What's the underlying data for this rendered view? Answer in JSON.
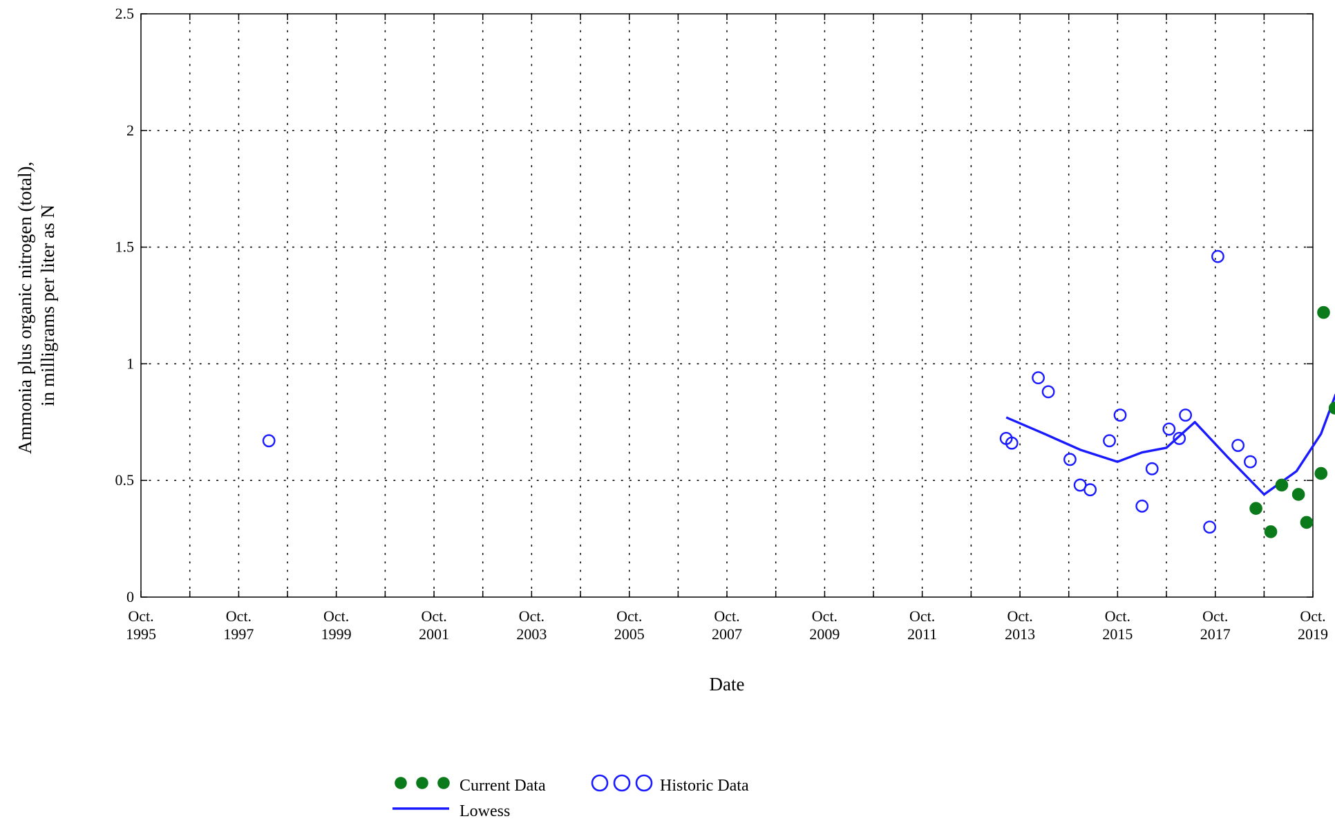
{
  "chart_data": {
    "type": "scatter",
    "xlabel": "Date",
    "ylabel_lines": [
      "Ammonia plus organic nitrogen (total),",
      "in milligrams per liter as N"
    ],
    "ylim": [
      0,
      2.5
    ],
    "yticks": [
      0,
      0.5,
      1,
      1.5,
      2,
      2.5
    ],
    "ytick_labels": [
      "0",
      "0.5",
      "1",
      "1.5",
      "2",
      "2.5"
    ],
    "xlim": [
      "1995-10-01",
      "2019-10-01"
    ],
    "xticks": [
      "1995-10-01",
      "1997-10-01",
      "1999-10-01",
      "2001-10-01",
      "2003-10-01",
      "2005-10-01",
      "2007-10-01",
      "2009-10-01",
      "2011-10-01",
      "2013-10-01",
      "2015-10-01",
      "2017-10-01",
      "2019-10-01"
    ],
    "xtick_labels": [
      [
        "Oct.",
        "1995"
      ],
      [
        "Oct.",
        "1997"
      ],
      [
        "Oct.",
        "1999"
      ],
      [
        "Oct.",
        "2001"
      ],
      [
        "Oct.",
        "2003"
      ],
      [
        "Oct.",
        "2005"
      ],
      [
        "Oct.",
        "2007"
      ],
      [
        "Oct.",
        "2009"
      ],
      [
        "Oct.",
        "2011"
      ],
      [
        "Oct.",
        "2013"
      ],
      [
        "Oct.",
        "2015"
      ],
      [
        "Oct.",
        "2017"
      ],
      [
        "Oct.",
        "2019"
      ]
    ],
    "grid": true,
    "legend_placement": "bottom-center",
    "series": [
      {
        "name": "Historic Data",
        "marker": "open-circle",
        "color": "#1a1aff",
        "points": [
          {
            "x": "1998-05-15",
            "y": 0.67
          },
          {
            "x": "2013-06-20",
            "y": 0.68
          },
          {
            "x": "2013-08-01",
            "y": 0.66
          },
          {
            "x": "2014-02-15",
            "y": 0.94
          },
          {
            "x": "2014-05-01",
            "y": 0.88
          },
          {
            "x": "2014-10-10",
            "y": 0.59
          },
          {
            "x": "2014-12-25",
            "y": 0.48
          },
          {
            "x": "2015-03-10",
            "y": 0.46
          },
          {
            "x": "2015-08-01",
            "y": 0.67
          },
          {
            "x": "2015-10-20",
            "y": 0.78
          },
          {
            "x": "2016-04-01",
            "y": 0.39
          },
          {
            "x": "2016-06-15",
            "y": 0.55
          },
          {
            "x": "2016-10-20",
            "y": 0.72
          },
          {
            "x": "2017-01-05",
            "y": 0.68
          },
          {
            "x": "2017-02-20",
            "y": 0.78
          },
          {
            "x": "2017-08-20",
            "y": 0.3
          },
          {
            "x": "2017-10-20",
            "y": 1.46
          },
          {
            "x": "2018-03-20",
            "y": 0.65
          },
          {
            "x": "2018-06-20",
            "y": 0.58
          }
        ]
      },
      {
        "name": "Current Data",
        "marker": "filled-circle",
        "color": "#0a7a1a",
        "points": [
          {
            "x": "2018-08-01",
            "y": 0.38
          },
          {
            "x": "2018-11-20",
            "y": 0.28
          },
          {
            "x": "2019-02-10",
            "y": 0.48
          },
          {
            "x": "2019-06-15",
            "y": 0.44
          },
          {
            "x": "2019-08-15",
            "y": 0.32
          },
          {
            "x": "2019-12-01",
            "y": 0.53
          },
          {
            "x": "2019-12-20",
            "y": 1.22
          },
          {
            "x": "2020-03-15",
            "y": 0.81
          }
        ]
      },
      {
        "name": "Lowess",
        "marker": "line",
        "color": "#1a1aff",
        "points": [
          {
            "x": "2013-06-20",
            "y": 0.77
          },
          {
            "x": "2014-04-01",
            "y": 0.7
          },
          {
            "x": "2015-01-01",
            "y": 0.63
          },
          {
            "x": "2015-10-01",
            "y": 0.58
          },
          {
            "x": "2016-04-01",
            "y": 0.62
          },
          {
            "x": "2016-10-01",
            "y": 0.64
          },
          {
            "x": "2017-05-01",
            "y": 0.75
          },
          {
            "x": "2018-01-01",
            "y": 0.6
          },
          {
            "x": "2018-10-01",
            "y": 0.44
          },
          {
            "x": "2019-06-01",
            "y": 0.54
          },
          {
            "x": "2019-12-01",
            "y": 0.7
          },
          {
            "x": "2020-03-20",
            "y": 0.87
          }
        ]
      }
    ]
  }
}
